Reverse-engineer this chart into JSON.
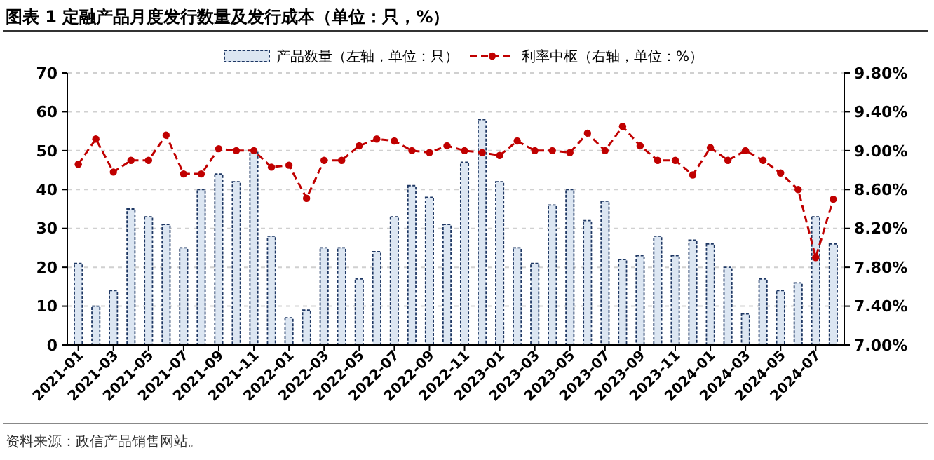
{
  "chart_data": {
    "type": "bar",
    "title": "图表 1 定融产品月度发行数量及发行成本（单位：只，%）",
    "categories": [
      "2021-01",
      null,
      "2021-03",
      null,
      "2021-05",
      null,
      "2021-07",
      null,
      "2021-09",
      null,
      "2021-11",
      null,
      "2022-01",
      null,
      "2022-03",
      null,
      "2022-05",
      null,
      "2022-07",
      null,
      "2022-09",
      null,
      "2022-11",
      null,
      "2023-01",
      null,
      "2023-03",
      null,
      "2023-05",
      null,
      "2023-07",
      null,
      "2023-09",
      null,
      "2023-11",
      null,
      "2024-01",
      null,
      "2024-03",
      null,
      "2024-05",
      null,
      "2024-07",
      null
    ],
    "series": [
      {
        "name": "产品数量（左轴，单位：只）",
        "color": "#dce6f2",
        "values": [
          21,
          10,
          14,
          35,
          33,
          31,
          25,
          40,
          44,
          42,
          50,
          28,
          7,
          9,
          25,
          25,
          17,
          24,
          33,
          41,
          38,
          31,
          47,
          58,
          42,
          25,
          21,
          36,
          40,
          32,
          37,
          22,
          23,
          28,
          23,
          27,
          26,
          20,
          8,
          17,
          14,
          16,
          33,
          26
        ]
      },
      {
        "name": "利率中枢（右轴，单位：%）",
        "type": "line",
        "axis": "y2",
        "color": "#c00000",
        "marker": "circle",
        "line_style": "dashed",
        "values": [
          8.86,
          9.12,
          8.78,
          8.9,
          8.9,
          9.16,
          8.76,
          8.76,
          9.02,
          9.0,
          9.0,
          8.83,
          8.85,
          8.51,
          8.9,
          8.9,
          9.05,
          9.12,
          9.1,
          9.0,
          8.98,
          9.05,
          9.0,
          8.98,
          8.95,
          9.1,
          9.0,
          9.0,
          8.98,
          9.18,
          9.0,
          9.25,
          9.05,
          8.9,
          8.9,
          8.75,
          9.03,
          8.9,
          9.0,
          8.9,
          8.77,
          8.6,
          7.9,
          8.5
        ]
      }
    ],
    "ylim": [
      0,
      70
    ],
    "yticks": [
      0,
      10,
      20,
      30,
      40,
      50,
      60,
      70
    ],
    "y2lim": [
      7.0,
      9.8
    ],
    "y2ticks": [
      {
        "value": 7.0,
        "label": "7.00%"
      },
      {
        "value": 7.4,
        "label": "7.40%"
      },
      {
        "value": 7.8,
        "label": "7.80%"
      },
      {
        "value": 8.2,
        "label": "8.20%"
      },
      {
        "value": 8.6,
        "label": "8.60%"
      },
      {
        "value": 9.0,
        "label": "9.00%"
      },
      {
        "value": 9.4,
        "label": "9.40%"
      },
      {
        "value": 9.8,
        "label": "9.80%"
      }
    ],
    "grid": "y",
    "legend": "top",
    "annotations": [
      "资料来源：政信产品销售网站。"
    ]
  }
}
